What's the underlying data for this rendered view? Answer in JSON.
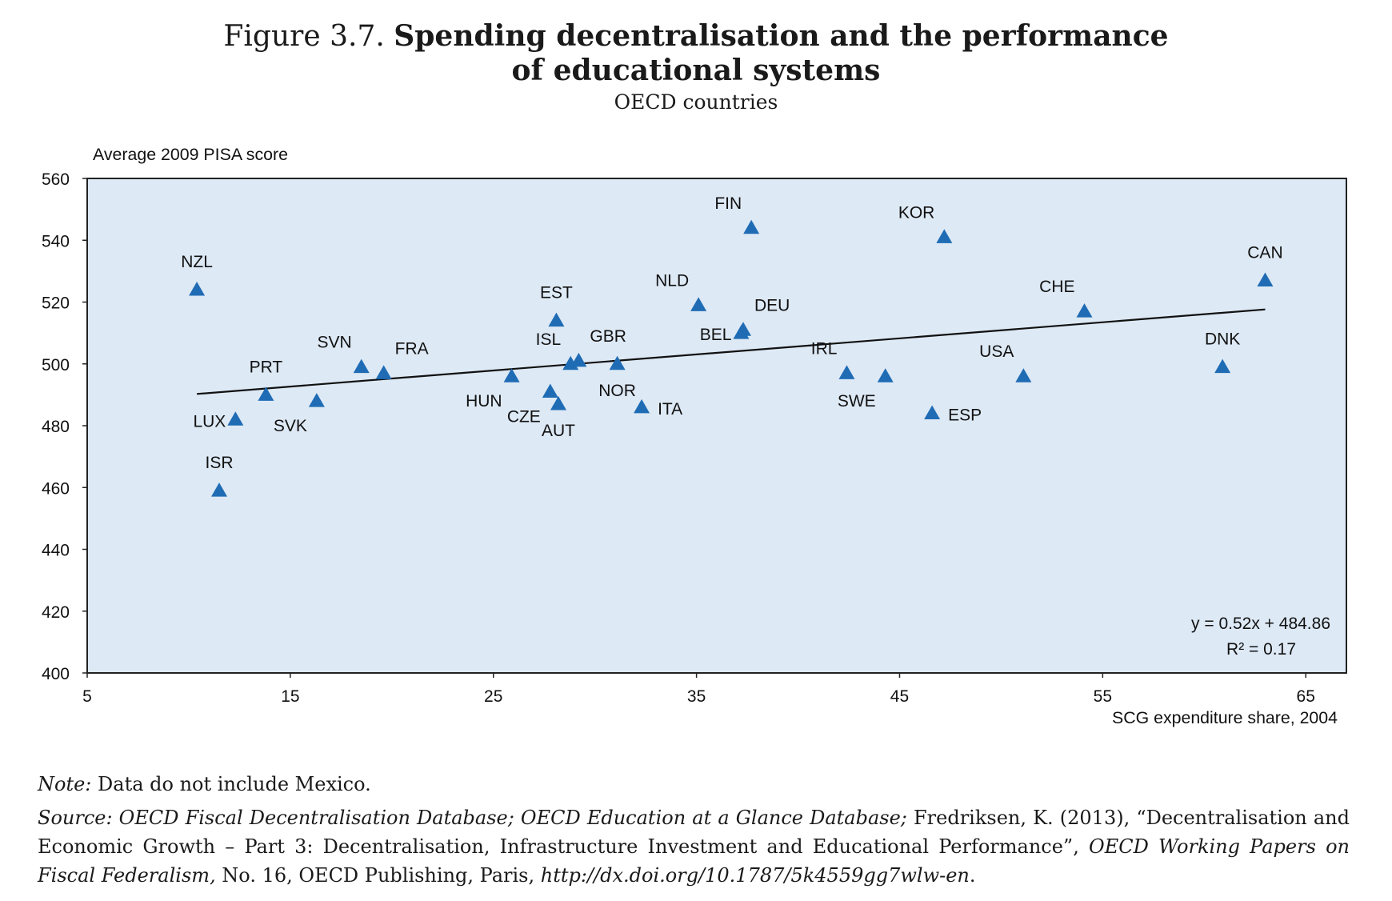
{
  "figure": {
    "number": "Figure 3.7.",
    "title_line1": "Spending decentralisation and the performance",
    "title_line2": "of educational systems",
    "subtitle": "OECD countries"
  },
  "chart_data": {
    "type": "scatter",
    "ylabel": "Average 2009 PISA score",
    "xlabel": "SCG expenditure share, 2004",
    "xlim": [
      5,
      67
    ],
    "ylim": [
      400,
      560
    ],
    "xticks": [
      5,
      15,
      25,
      35,
      45,
      55,
      65
    ],
    "yticks": [
      400,
      420,
      440,
      460,
      480,
      500,
      520,
      540,
      560
    ],
    "grid": false,
    "marker": "triangle",
    "marker_color": "#1f6cb5",
    "plot_background": "#dde9f5",
    "points": [
      {
        "label": "NZL",
        "x": 10.4,
        "y": 524,
        "label_pos": "above"
      },
      {
        "label": "LUX",
        "x": 12.3,
        "y": 482,
        "label_pos": "left"
      },
      {
        "label": "ISR",
        "x": 11.5,
        "y": 459,
        "label_pos": "above"
      },
      {
        "label": "PRT",
        "x": 13.8,
        "y": 490,
        "label_pos": "above"
      },
      {
        "label": "SVK",
        "x": 16.3,
        "y": 488,
        "label_pos": "below-left"
      },
      {
        "label": "SVN",
        "x": 18.5,
        "y": 499,
        "label_pos": "above-left"
      },
      {
        "label": "FRA",
        "x": 19.6,
        "y": 497,
        "label_pos": "above-right"
      },
      {
        "label": "HUN",
        "x": 25.9,
        "y": 496,
        "label_pos": "below-left"
      },
      {
        "label": "CZE",
        "x": 27.8,
        "y": 491,
        "label_pos": "below-left"
      },
      {
        "label": "AUT",
        "x": 28.2,
        "y": 487,
        "label_pos": "below"
      },
      {
        "label": "EST",
        "x": 28.1,
        "y": 514,
        "label_pos": "above"
      },
      {
        "label": "ISL",
        "x": 28.8,
        "y": 500,
        "label_pos": "above-left"
      },
      {
        "label": "GBR",
        "x": 29.2,
        "y": 501,
        "label_pos": "above-right"
      },
      {
        "label": "NOR",
        "x": 31.1,
        "y": 500,
        "label_pos": "below"
      },
      {
        "label": "ITA",
        "x": 32.3,
        "y": 486,
        "label_pos": "right"
      },
      {
        "label": "NLD",
        "x": 35.1,
        "y": 519,
        "label_pos": "above-left"
      },
      {
        "label": "BEL",
        "x": 37.2,
        "y": 510,
        "label_pos": "left"
      },
      {
        "label": "DEU",
        "x": 37.3,
        "y": 511,
        "label_pos": "above-right"
      },
      {
        "label": "FIN",
        "x": 37.7,
        "y": 544,
        "label_pos": "above-left"
      },
      {
        "label": "IRL",
        "x": 42.4,
        "y": 497,
        "label_pos": "above-left"
      },
      {
        "label": "SWE",
        "x": 44.3,
        "y": 496,
        "label_pos": "below-left"
      },
      {
        "label": "KOR",
        "x": 47.2,
        "y": 541,
        "label_pos": "above-left"
      },
      {
        "label": "ESP",
        "x": 46.6,
        "y": 484,
        "label_pos": "right"
      },
      {
        "label": "USA",
        "x": 51.1,
        "y": 496,
        "label_pos": "above-left"
      },
      {
        "label": "CHE",
        "x": 54.1,
        "y": 517,
        "label_pos": "above-left"
      },
      {
        "label": "DNK",
        "x": 60.9,
        "y": 499,
        "label_pos": "above"
      },
      {
        "label": "CAN",
        "x": 63.0,
        "y": 527,
        "label_pos": "above"
      }
    ],
    "trendline": {
      "slope": 0.52,
      "intercept": 484.86,
      "x_range": [
        10.4,
        63.0
      ]
    },
    "annotation_line1": "y = 0.52x + 484.86",
    "annotation_line2": "R² = 0.17"
  },
  "notes": {
    "note_label": "Note:",
    "note_text": " Data do not include Mexico.",
    "source_label": "Source:",
    "source_db1": " OECD Fiscal Decentralisation Database;",
    "source_db2": " OECD Education at a Glance Database;",
    "source_text1": " Fredriksen, K. (2013), “Decentralisation and Economic Growth – Part 3: Decentralisation, Infrastructure Investment and Educational Performance”,",
    "source_series": " OECD Working Papers on Fiscal Federalism,",
    "source_text2": " No. 16, OECD Publishing, Paris,",
    "source_url": " http://dx.doi.org/10.1787/5k4559gg7wlw-en",
    "source_end": "."
  }
}
